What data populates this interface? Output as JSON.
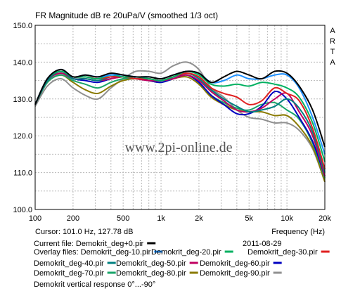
{
  "chart_data": {
    "type": "line",
    "title": "FR Magnitude dB re 20uPa/V (smoothed 1/3 oct)",
    "side_label": [
      "A",
      "R",
      "T",
      "A"
    ],
    "xlabel": "Frequency (Hz)",
    "x_scale": "log",
    "xlim": [
      100,
      20000
    ],
    "ylim": [
      100,
      150
    ],
    "grid": true,
    "x_ticks": [
      {
        "v": 100,
        "label": "100"
      },
      {
        "v": 200,
        "label": "200"
      },
      {
        "v": 500,
        "label": "500"
      },
      {
        "v": 1000,
        "label": "1k"
      },
      {
        "v": 2000,
        "label": "2k"
      },
      {
        "v": 5000,
        "label": "5k"
      },
      {
        "v": 10000,
        "label": "10k"
      },
      {
        "v": 20000,
        "label": "20k"
      }
    ],
    "y_ticks": [
      {
        "v": 100,
        "label": "100.0"
      },
      {
        "v": 110,
        "label": "110.0"
      },
      {
        "v": 120,
        "label": "120.0"
      },
      {
        "v": 130,
        "label": "130.0"
      },
      {
        "v": 140,
        "label": "140.0"
      },
      {
        "v": 150,
        "label": "150.0"
      }
    ],
    "watermark": "www.2pi-online.de",
    "cursor_text": "Cursor: 101.0 Hz, 127.78 dB",
    "date": "2011-08-29",
    "current_file_label": "Current file: Demokrit_deg+0.pir",
    "overlay_label": "Overlay files:",
    "footer_text": "Demokrit vertical response 0°...-90°",
    "series": [
      {
        "name": "Demokrit_deg+0.pir",
        "color": "#000000",
        "x": [
          100,
          125,
          160,
          200,
          250,
          315,
          400,
          500,
          630,
          800,
          1000,
          1250,
          1600,
          2000,
          2500,
          3150,
          4000,
          5000,
          6300,
          8000,
          10000,
          12500,
          16000,
          20000
        ],
        "values": [
          128.5,
          135.5,
          138,
          136,
          136.5,
          136,
          137,
          136.5,
          136,
          136,
          135.5,
          136.5,
          137.5,
          137,
          134.5,
          136,
          137.5,
          136.5,
          135.5,
          137.5,
          137,
          133.5,
          127,
          117
        ]
      },
      {
        "name": "Demokrit_deg-10.pir",
        "color": "#1e90ff",
        "x": [
          100,
          125,
          160,
          200,
          250,
          315,
          400,
          500,
          630,
          800,
          1000,
          1250,
          1600,
          2000,
          2500,
          3150,
          4000,
          5000,
          6300,
          8000,
          10000,
          12500,
          16000,
          20000
        ],
        "values": [
          128.5,
          135.5,
          138,
          136,
          136.5,
          136,
          136.5,
          136.5,
          136,
          136,
          135.5,
          136.5,
          137.5,
          137,
          134.5,
          135,
          136.5,
          135.5,
          135.5,
          136.5,
          136.5,
          133,
          125,
          115
        ]
      },
      {
        "name": "Demokrit_deg-20.pir",
        "color": "#00b060",
        "x": [
          100,
          125,
          160,
          200,
          250,
          315,
          400,
          500,
          630,
          800,
          1000,
          1250,
          1600,
          2000,
          2500,
          3150,
          4000,
          5000,
          6300,
          8000,
          10000,
          12500,
          16000,
          20000
        ],
        "values": [
          128.5,
          135.5,
          137.5,
          136,
          136,
          135.5,
          136.5,
          136,
          136,
          135.5,
          135,
          136,
          137.5,
          136.5,
          134,
          133.5,
          134,
          133.5,
          134.5,
          134,
          133,
          130.5,
          123.5,
          113
        ]
      },
      {
        "name": "Demokrit_deg-30.pir",
        "color": "#e02020",
        "x": [
          100,
          125,
          160,
          200,
          250,
          315,
          400,
          500,
          630,
          800,
          1000,
          1250,
          1600,
          2000,
          2500,
          3150,
          4000,
          5000,
          6300,
          8000,
          10000,
          12500,
          16000,
          20000
        ],
        "values": [
          128.5,
          135.5,
          137.5,
          136,
          136,
          135.5,
          136,
          136,
          135.5,
          135.5,
          135,
          136,
          137,
          136,
          133,
          131.5,
          130.5,
          128.5,
          129.5,
          133,
          131.5,
          129.5,
          122,
          111
        ]
      },
      {
        "name": "Demokrit_deg-40.pir",
        "color": "#008080",
        "x": [
          100,
          125,
          160,
          200,
          250,
          315,
          400,
          500,
          630,
          800,
          1000,
          1250,
          1600,
          2000,
          2500,
          3150,
          4000,
          5000,
          6300,
          8000,
          10000,
          12500,
          16000,
          20000
        ],
        "values": [
          128.5,
          135,
          137.5,
          135.5,
          135.5,
          135,
          136,
          136,
          135.5,
          135.5,
          135,
          136,
          137,
          135.5,
          132.5,
          130,
          128,
          126.5,
          127,
          128,
          130,
          127.5,
          121,
          110
        ]
      },
      {
        "name": "Demokrit_deg-50.pir",
        "color": "#c00060",
        "x": [
          100,
          125,
          160,
          200,
          250,
          315,
          400,
          500,
          630,
          800,
          1000,
          1250,
          1600,
          2000,
          2500,
          3150,
          4000,
          5000,
          6300,
          8000,
          10000,
          12500,
          16000,
          20000
        ],
        "values": [
          128.5,
          135,
          137,
          135.5,
          135.5,
          135,
          135.5,
          136,
          135.5,
          135,
          135,
          135.5,
          136.5,
          135,
          132,
          129.5,
          127,
          126.5,
          127.5,
          130,
          131.5,
          126.5,
          120,
          109
        ]
      },
      {
        "name": "Demokrit_deg-60.pir",
        "color": "#0000c0",
        "x": [
          100,
          125,
          160,
          200,
          250,
          315,
          400,
          500,
          630,
          800,
          1000,
          1250,
          1600,
          2000,
          2500,
          3150,
          4000,
          5000,
          6300,
          8000,
          10000,
          12500,
          16000,
          20000
        ],
        "values": [
          128.5,
          135,
          137,
          135.5,
          135,
          134.5,
          135.5,
          136,
          135.5,
          135,
          134.5,
          135.5,
          136.5,
          134.5,
          131,
          128.5,
          126,
          126,
          128,
          132,
          130,
          125,
          118.5,
          109
        ]
      },
      {
        "name": "Demokrit_deg-70.pir",
        "color": "#1aa56a",
        "x": [
          100,
          125,
          160,
          200,
          250,
          315,
          400,
          500,
          630,
          800,
          1000,
          1250,
          1600,
          2000,
          2500,
          3150,
          4000,
          5000,
          6300,
          8000,
          10000,
          12500,
          16000,
          20000
        ],
        "values": [
          128.5,
          134.5,
          136.5,
          135,
          134,
          133,
          134.5,
          135.5,
          135.5,
          135,
          134.5,
          135.5,
          136.5,
          134.5,
          131,
          129,
          127.5,
          127,
          128.5,
          129,
          127,
          124.5,
          118,
          108.5
        ]
      },
      {
        "name": "Demokrit_deg-80.pir",
        "color": "#8a7a00",
        "x": [
          100,
          125,
          160,
          200,
          250,
          315,
          400,
          500,
          630,
          800,
          1000,
          1250,
          1600,
          2000,
          2500,
          3150,
          4000,
          5000,
          6300,
          8000,
          10000,
          12500,
          16000,
          20000
        ],
        "values": [
          128.5,
          134.5,
          136.5,
          134.5,
          132.5,
          131.5,
          133.5,
          135,
          135.5,
          135,
          134.5,
          135.5,
          136,
          134,
          130.5,
          128.5,
          127,
          126.5,
          126.5,
          125.5,
          125.5,
          122.5,
          117,
          107.5
        ]
      },
      {
        "name": "Demokrit_deg-90.pir",
        "color": "#909090",
        "x": [
          100,
          125,
          160,
          200,
          250,
          315,
          400,
          500,
          630,
          800,
          1000,
          1250,
          1600,
          2000,
          2500,
          3150,
          4000,
          5000,
          6300,
          8000,
          10000,
          12500,
          16000,
          20000
        ],
        "values": [
          128,
          133.5,
          135.5,
          133,
          131,
          130,
          133,
          135.5,
          137.5,
          137.5,
          137,
          139,
          140,
          138,
          133,
          130.5,
          127,
          125,
          124.5,
          123.5,
          123.5,
          121.5,
          116.5,
          107.5
        ]
      }
    ],
    "legend_rows": [
      [
        {
          "series": 0,
          "text": "Current file: Demokrit_deg+0.pir"
        }
      ],
      [
        {
          "series": 1,
          "text": "Overlay files: Demokrit_deg-10.pir"
        },
        {
          "series": 2,
          "text": "Demokrit_deg-20.pir"
        },
        {
          "series": 3,
          "text": "Demokrit_deg-30.pir"
        }
      ],
      [
        {
          "series": 4,
          "text": "Demokrit_deg-40.pir"
        },
        {
          "series": 5,
          "text": "Demokrit_deg-50.pir"
        },
        {
          "series": 6,
          "text": "Demokrit_deg-60.pir"
        }
      ],
      [
        {
          "series": 7,
          "text": "Demokrit_deg-70.pir"
        },
        {
          "series": 8,
          "text": "Demokrit_deg-80.pir"
        },
        {
          "series": 9,
          "text": "Demokrit_deg-90.pir"
        }
      ]
    ]
  }
}
